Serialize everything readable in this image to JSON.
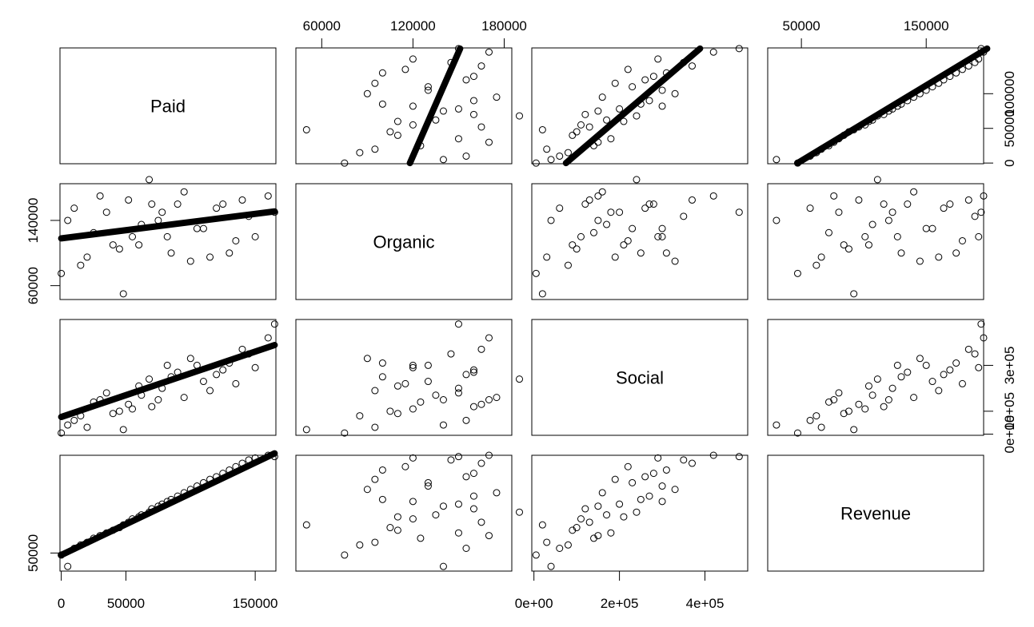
{
  "chart_data": {
    "type": "scatter",
    "plot_kind": "scatterplot-matrix",
    "variables": [
      "Paid",
      "Organic",
      "Social",
      "Revenue"
    ],
    "ranges": {
      "Paid": [
        -1000,
        166000
      ],
      "Organic": [
        43000,
        185000
      ],
      "Social": [
        -5000,
        500000
      ],
      "Revenue": [
        23000,
        196000
      ]
    },
    "axis_ticks": {
      "top": {
        "Organic": [
          "60000",
          "120000",
          "180000"
        ],
        "Revenue": [
          "50000",
          "150000"
        ]
      },
      "bottom": {
        "Paid": [
          "0",
          "50000",
          "150000"
        ],
        "Social": [
          "0e+00",
          "2e+05",
          "4e+05"
        ]
      },
      "left": {
        "Organic": [
          "60000",
          "140000"
        ],
        "Revenue": [
          "50000"
        ]
      },
      "right": {
        "Paid": [
          "0",
          "50000",
          "100000"
        ],
        "Social": [
          "0e+00",
          "1e+05",
          "3e+05"
        ]
      }
    },
    "points": {
      "Paid": [
        0,
        10000,
        20000,
        30000,
        40000,
        48000,
        55000,
        62000,
        70000,
        78000,
        85000,
        95000,
        105000,
        115000,
        125000,
        135000,
        145000,
        160000,
        5000,
        15000,
        25000,
        35000,
        45000,
        52000,
        60000,
        68000,
        75000,
        82000,
        90000,
        100000,
        110000,
        120000,
        130000,
        140000,
        150000,
        165000
      ],
      "Organic": [
        75000,
        155000,
        95000,
        170000,
        110000,
        50000,
        120000,
        135000,
        160000,
        150000,
        100000,
        175000,
        130000,
        95000,
        160000,
        115000,
        145000,
        170000,
        140000,
        85000,
        125000,
        150000,
        105000,
        165000,
        110000,
        190000,
        140000,
        120000,
        160000,
        90000,
        130000,
        155000,
        100000,
        165000,
        120000,
        150000
      ],
      "Social": [
        5000,
        60000,
        30000,
        150000,
        90000,
        20000,
        110000,
        170000,
        120000,
        200000,
        250000,
        160000,
        300000,
        190000,
        280000,
        220000,
        350000,
        420000,
        40000,
        80000,
        140000,
        180000,
        100000,
        130000,
        210000,
        240000,
        150000,
        300000,
        270000,
        330000,
        230000,
        260000,
        310000,
        370000,
        290000,
        480000
      ],
      "Revenue": [
        47000,
        57000,
        66000,
        76000,
        84000,
        92000,
        101000,
        107000,
        116000,
        123000,
        130000,
        140000,
        150000,
        160000,
        169000,
        179000,
        189000,
        196000,
        30000,
        62000,
        72000,
        80000,
        88000,
        96000,
        104000,
        111000,
        120000,
        127000,
        135000,
        145000,
        155000,
        164000,
        174000,
        184000,
        192000,
        194000
      ]
    },
    "fitted_lines": {
      "Organic_vs_Paid": {
        "intercept": 118000,
        "slope": 0.2
      },
      "Social_vs_Paid": {
        "intercept": 75000,
        "slope": 1.9
      },
      "Revenue_vs_Paid": {
        "intercept": 47000,
        "slope": 0.92
      }
    },
    "grid": false,
    "legend": "none"
  }
}
